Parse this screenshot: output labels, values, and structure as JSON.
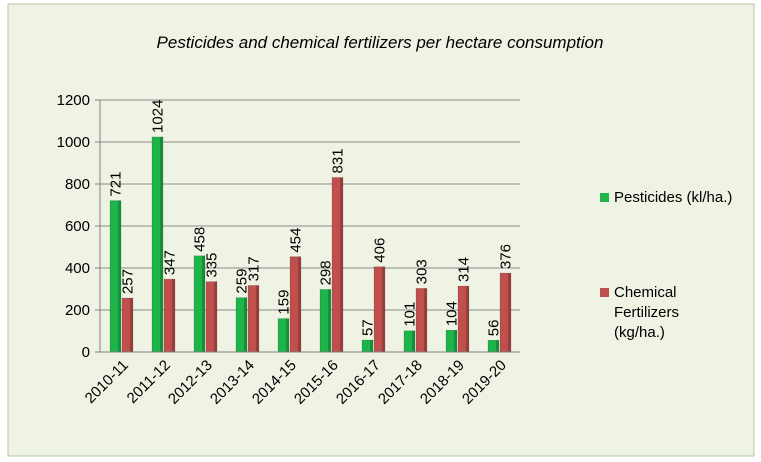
{
  "chart_data": {
    "type": "bar",
    "title": "Pesticides and chemical fertilizers per hectare consumption",
    "categories": [
      "2010-11",
      "2011-12",
      "2012-13",
      "2013-14",
      "2014-15",
      "2015-16",
      "2016-17",
      "2017-18",
      "2018-19",
      "2019-20"
    ],
    "series": [
      {
        "name": "Pesticides (kl/ha.)",
        "color": "#1db44a",
        "values": [
          721,
          1024,
          458,
          259,
          159,
          298,
          57,
          101,
          104,
          56
        ]
      },
      {
        "name": "Chemical Fertilizers (kg/ha.)",
        "color": "#c0504d",
        "values": [
          257,
          347,
          335,
          317,
          454,
          831,
          406,
          303,
          314,
          376
        ]
      }
    ],
    "ylim": [
      0,
      1200
    ],
    "yticks": [
      0,
      200,
      400,
      600,
      800,
      1000,
      1200
    ],
    "grid": true,
    "legend": "right"
  }
}
